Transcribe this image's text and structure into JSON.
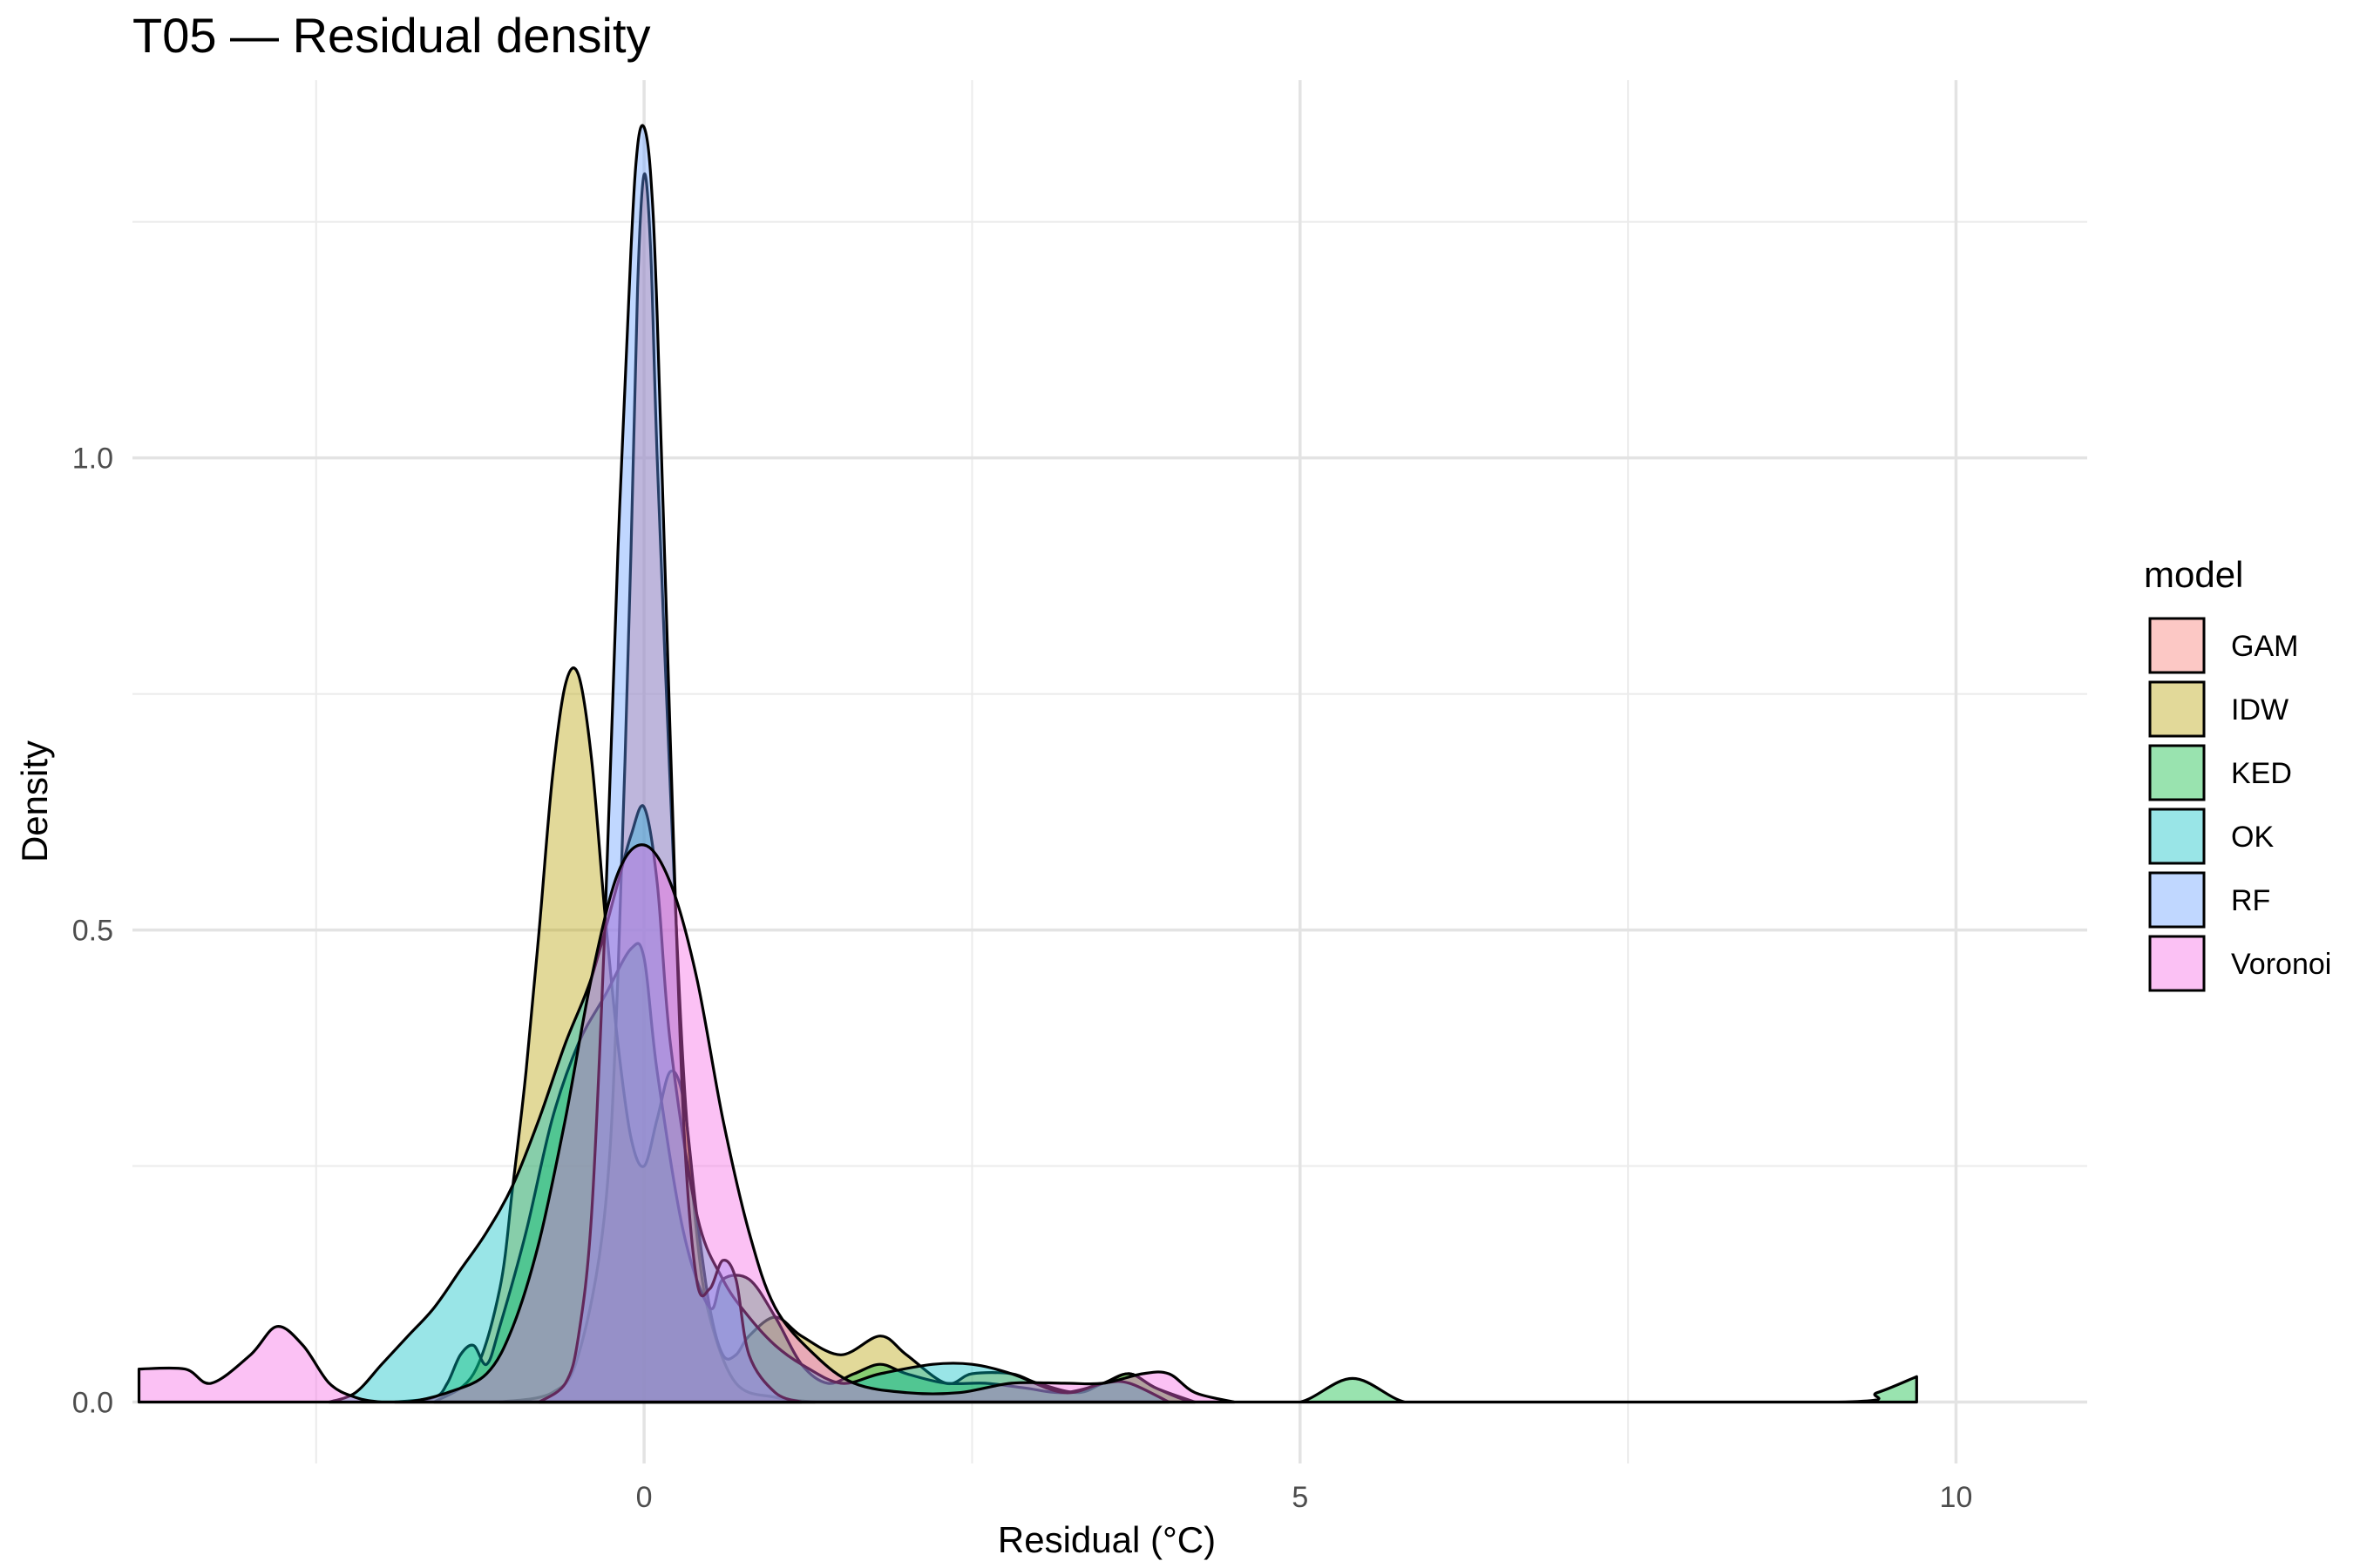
{
  "chart_data": {
    "type": "area",
    "title": "T05 — Residual density",
    "xlabel": "Residual (°C)",
    "ylabel": "Density",
    "xlim": [
      -3.9,
      11.0
    ],
    "ylim": [
      -0.065,
      1.4
    ],
    "x_ticks": [
      0,
      5,
      10
    ],
    "x_tick_labels": [
      "0",
      "5",
      "10"
    ],
    "y_ticks": [
      0.0,
      0.5,
      1.0
    ],
    "y_tick_labels": [
      "0.0",
      "0.5",
      "1.0"
    ],
    "x_minor_ticks": [
      -2.5,
      2.5,
      7.5
    ],
    "y_minor_ticks": [
      0.25,
      0.75,
      1.25
    ],
    "grid": true,
    "legend": {
      "title": "model",
      "position": "right"
    },
    "fill_opacity": 0.4,
    "series": [
      {
        "name": "GAM",
        "color": "#F8766D",
        "x": [
          -1.1,
          -0.7,
          -0.5,
          -0.3,
          -0.2,
          -0.1,
          -0.05,
          0,
          0.05,
          0.1,
          0.2,
          0.3,
          0.4,
          0.5,
          0.7,
          1.0,
          1.3
        ],
        "y": [
          0,
          0.01,
          0.05,
          0.2,
          0.45,
          0.9,
          1.18,
          1.3,
          1.22,
          1.0,
          0.65,
          0.35,
          0.18,
          0.09,
          0.02,
          0.005,
          0
        ]
      },
      {
        "name": "IDW",
        "color": "#B79F00",
        "x": [
          -1.6,
          -1.3,
          -1.1,
          -1.0,
          -0.9,
          -0.8,
          -0.7,
          -0.6,
          -0.5,
          -0.4,
          -0.3,
          -0.2,
          -0.1,
          0,
          0.1,
          0.2,
          0.3,
          0.4,
          0.5,
          0.6,
          0.7,
          0.8,
          1.0,
          1.2,
          1.5,
          1.8,
          2.0,
          2.3,
          2.5,
          2.8,
          3.0,
          3.3,
          3.5,
          3.7,
          3.9,
          4.2
        ],
        "y": [
          0,
          0.03,
          0.12,
          0.23,
          0.35,
          0.5,
          0.66,
          0.76,
          0.77,
          0.68,
          0.52,
          0.38,
          0.28,
          0.25,
          0.3,
          0.35,
          0.32,
          0.2,
          0.1,
          0.05,
          0.05,
          0.07,
          0.09,
          0.07,
          0.05,
          0.07,
          0.05,
          0.02,
          0.03,
          0.03,
          0.02,
          0.01,
          0.02,
          0.03,
          0.015,
          0
        ]
      },
      {
        "name": "KED",
        "color": "#00BA38",
        "x": [
          -1.9,
          -1.6,
          -1.5,
          -1.4,
          -1.3,
          -1.2,
          -1.1,
          -0.9,
          -0.7,
          -0.5,
          -0.3,
          -0.1,
          0,
          0.1,
          0.3,
          0.5,
          0.6,
          0.8,
          1.0,
          1.2,
          1.4,
          1.6,
          1.8,
          2.0,
          2.3,
          2.6,
          2.9,
          3.2,
          3.5,
          3.7,
          3.9,
          4.2,
          4.6,
          5.0,
          5.4,
          5.8,
          6.2,
          9.1,
          9.4,
          9.7
        ],
        "y": [
          0,
          0.005,
          0.02,
          0.05,
          0.06,
          0.04,
          0.08,
          0.18,
          0.3,
          0.38,
          0.43,
          0.48,
          0.47,
          0.35,
          0.18,
          0.1,
          0.13,
          0.13,
          0.09,
          0.04,
          0.02,
          0.03,
          0.04,
          0.03,
          0.02,
          0.02,
          0.015,
          0.01,
          0.02,
          0.03,
          0.015,
          0,
          0,
          0,
          0.025,
          0,
          0,
          0,
          0.01,
          0.027
        ]
      },
      {
        "name": "OK",
        "color": "#00BFC4",
        "x": [
          -2.4,
          -2.2,
          -2.0,
          -1.8,
          -1.6,
          -1.4,
          -1.2,
          -1.0,
          -0.8,
          -0.6,
          -0.4,
          -0.2,
          -0.1,
          0,
          0.1,
          0.2,
          0.4,
          0.6,
          0.8,
          1.0,
          1.2,
          1.5,
          1.8,
          2.2,
          2.5,
          2.8,
          3.2,
          3.5,
          3.7,
          4.0
        ],
        "y": [
          0,
          0.01,
          0.04,
          0.07,
          0.1,
          0.14,
          0.18,
          0.23,
          0.3,
          0.38,
          0.45,
          0.55,
          0.6,
          0.63,
          0.55,
          0.38,
          0.2,
          0.13,
          0.09,
          0.06,
          0.04,
          0.02,
          0.03,
          0.04,
          0.04,
          0.03,
          0.01,
          0.02,
          0.02,
          0
        ]
      },
      {
        "name": "RF",
        "color": "#619CFF",
        "x": [
          -0.8,
          -0.6,
          -0.5,
          -0.4,
          -0.3,
          -0.2,
          -0.1,
          -0.05,
          0,
          0.05,
          0.1,
          0.2,
          0.3,
          0.4,
          0.5,
          0.6,
          0.7,
          0.8,
          1.0,
          1.2
        ],
        "y": [
          0,
          0.02,
          0.07,
          0.2,
          0.5,
          0.9,
          1.22,
          1.33,
          1.35,
          1.3,
          1.15,
          0.7,
          0.3,
          0.13,
          0.12,
          0.15,
          0.13,
          0.05,
          0.01,
          0
        ]
      },
      {
        "name": "Voronoi",
        "color": "#F564E3",
        "x": [
          -3.85,
          -3.5,
          -3.3,
          -3.0,
          -2.8,
          -2.6,
          -2.4,
          -2.2,
          -2.0,
          -1.8,
          -1.5,
          -1.2,
          -1.0,
          -0.8,
          -0.6,
          -0.4,
          -0.2,
          0,
          0.2,
          0.4,
          0.6,
          0.8,
          1.0,
          1.3,
          1.6,
          2.0,
          2.4,
          2.8,
          3.2,
          3.5,
          3.8,
          4.0,
          4.2,
          4.5
        ],
        "y": [
          0.035,
          0.035,
          0.02,
          0.05,
          0.08,
          0.06,
          0.02,
          0.005,
          0,
          0,
          0.01,
          0.03,
          0.08,
          0.17,
          0.3,
          0.45,
          0.56,
          0.59,
          0.55,
          0.45,
          0.3,
          0.18,
          0.1,
          0.05,
          0.02,
          0.01,
          0.01,
          0.02,
          0.02,
          0.02,
          0.03,
          0.03,
          0.01,
          0
        ]
      }
    ]
  }
}
